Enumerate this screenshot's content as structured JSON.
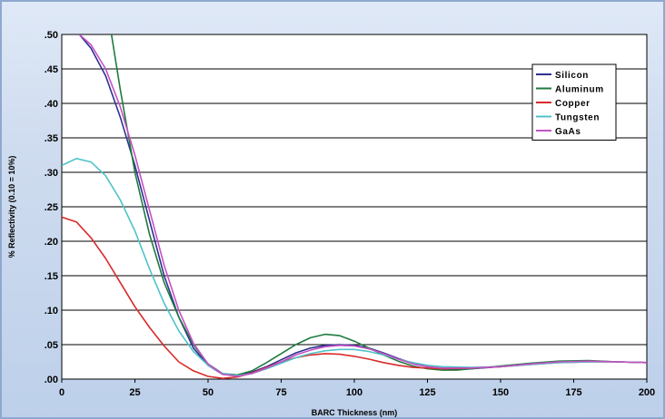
{
  "chart_data": {
    "type": "line",
    "title": "",
    "xlabel": "BARC Thickness (nm)",
    "ylabel": "% Reflectivity (0.10 = 10%)",
    "xlim": [
      0,
      200
    ],
    "ylim": [
      0,
      0.5
    ],
    "x_ticks": [
      0,
      25,
      50,
      75,
      100,
      125,
      150,
      175,
      200
    ],
    "x_tick_labels": [
      "0",
      "25",
      "50",
      "75",
      "100",
      "125",
      "150",
      "175",
      "200"
    ],
    "y_ticks": [
      0,
      0.05,
      0.1,
      0.15,
      0.2,
      0.25,
      0.3,
      0.35,
      0.4,
      0.45,
      0.5
    ],
    "y_tick_labels": [
      ".00",
      ".05",
      ".10",
      ".15",
      ".20",
      ".25",
      ".30",
      ".35",
      ".40",
      ".45",
      ".50"
    ],
    "grid": "horizontal",
    "legend_position": "top-right",
    "series": [
      {
        "name": "Silicon",
        "color": "#2e3192",
        "points": [
          [
            6,
            0.5
          ],
          [
            10,
            0.48
          ],
          [
            15,
            0.44
          ],
          [
            20,
            0.38
          ],
          [
            25,
            0.31
          ],
          [
            30,
            0.23
          ],
          [
            35,
            0.15
          ],
          [
            40,
            0.09
          ],
          [
            45,
            0.045
          ],
          [
            50,
            0.02
          ],
          [
            55,
            0.007
          ],
          [
            60,
            0.005
          ],
          [
            65,
            0.01
          ],
          [
            70,
            0.018
          ],
          [
            75,
            0.028
          ],
          [
            80,
            0.038
          ],
          [
            85,
            0.045
          ],
          [
            90,
            0.049
          ],
          [
            95,
            0.05
          ],
          [
            100,
            0.049
          ],
          [
            105,
            0.045
          ],
          [
            110,
            0.038
          ],
          [
            115,
            0.03
          ],
          [
            120,
            0.023
          ],
          [
            125,
            0.018
          ],
          [
            130,
            0.015
          ],
          [
            135,
            0.014
          ],
          [
            140,
            0.015
          ],
          [
            150,
            0.018
          ],
          [
            160,
            0.022
          ],
          [
            170,
            0.025
          ],
          [
            180,
            0.026
          ],
          [
            190,
            0.025
          ],
          [
            200,
            0.024
          ]
        ]
      },
      {
        "name": "Aluminum",
        "color": "#1f7a3e",
        "points": [
          [
            17,
            0.5
          ],
          [
            20,
            0.42
          ],
          [
            25,
            0.3
          ],
          [
            30,
            0.21
          ],
          [
            35,
            0.14
          ],
          [
            40,
            0.09
          ],
          [
            45,
            0.05
          ],
          [
            50,
            0.022
          ],
          [
            55,
            0.008
          ],
          [
            60,
            0.006
          ],
          [
            65,
            0.012
          ],
          [
            70,
            0.024
          ],
          [
            75,
            0.037
          ],
          [
            80,
            0.05
          ],
          [
            85,
            0.06
          ],
          [
            90,
            0.065
          ],
          [
            95,
            0.063
          ],
          [
            100,
            0.055
          ],
          [
            105,
            0.045
          ],
          [
            110,
            0.035
          ],
          [
            115,
            0.026
          ],
          [
            120,
            0.019
          ],
          [
            125,
            0.015
          ],
          [
            130,
            0.013
          ],
          [
            135,
            0.013
          ],
          [
            140,
            0.015
          ],
          [
            150,
            0.019
          ],
          [
            160,
            0.023
          ],
          [
            170,
            0.026
          ],
          [
            180,
            0.027
          ],
          [
            190,
            0.025
          ],
          [
            200,
            0.024
          ]
        ]
      },
      {
        "name": "Copper",
        "color": "#d92a2a",
        "points": [
          [
            0,
            0.235
          ],
          [
            5,
            0.228
          ],
          [
            10,
            0.205
          ],
          [
            15,
            0.175
          ],
          [
            20,
            0.14
          ],
          [
            25,
            0.105
          ],
          [
            30,
            0.075
          ],
          [
            35,
            0.048
          ],
          [
            40,
            0.025
          ],
          [
            45,
            0.012
          ],
          [
            50,
            0.004
          ],
          [
            55,
            0.001
          ],
          [
            60,
            0.003
          ],
          [
            65,
            0.009
          ],
          [
            70,
            0.017
          ],
          [
            75,
            0.025
          ],
          [
            80,
            0.031
          ],
          [
            85,
            0.035
          ],
          [
            90,
            0.037
          ],
          [
            95,
            0.036
          ],
          [
            100,
            0.033
          ],
          [
            105,
            0.029
          ],
          [
            110,
            0.024
          ],
          [
            115,
            0.02
          ],
          [
            120,
            0.017
          ],
          [
            130,
            0.015
          ],
          [
            140,
            0.016
          ],
          [
            150,
            0.018
          ],
          [
            160,
            0.021
          ],
          [
            170,
            0.024
          ],
          [
            180,
            0.025
          ],
          [
            190,
            0.025
          ],
          [
            200,
            0.024
          ]
        ]
      },
      {
        "name": "Tungsten",
        "color": "#4fc3c8",
        "points": [
          [
            0,
            0.31
          ],
          [
            5,
            0.32
          ],
          [
            10,
            0.315
          ],
          [
            15,
            0.295
          ],
          [
            20,
            0.26
          ],
          [
            25,
            0.215
          ],
          [
            30,
            0.16
          ],
          [
            35,
            0.11
          ],
          [
            40,
            0.07
          ],
          [
            45,
            0.04
          ],
          [
            50,
            0.02
          ],
          [
            55,
            0.008
          ],
          [
            60,
            0.005
          ],
          [
            65,
            0.008
          ],
          [
            70,
            0.015
          ],
          [
            75,
            0.023
          ],
          [
            80,
            0.031
          ],
          [
            85,
            0.037
          ],
          [
            90,
            0.041
          ],
          [
            95,
            0.043
          ],
          [
            100,
            0.043
          ],
          [
            105,
            0.04
          ],
          [
            110,
            0.035
          ],
          [
            115,
            0.029
          ],
          [
            120,
            0.024
          ],
          [
            125,
            0.02
          ],
          [
            130,
            0.018
          ],
          [
            140,
            0.017
          ],
          [
            150,
            0.018
          ],
          [
            160,
            0.021
          ],
          [
            170,
            0.024
          ],
          [
            180,
            0.025
          ],
          [
            190,
            0.025
          ],
          [
            200,
            0.024
          ]
        ]
      },
      {
        "name": "GaAs",
        "color": "#c452c4",
        "points": [
          [
            6,
            0.5
          ],
          [
            10,
            0.485
          ],
          [
            15,
            0.45
          ],
          [
            20,
            0.395
          ],
          [
            25,
            0.325
          ],
          [
            30,
            0.245
          ],
          [
            35,
            0.165
          ],
          [
            40,
            0.1
          ],
          [
            45,
            0.052
          ],
          [
            50,
            0.022
          ],
          [
            55,
            0.007
          ],
          [
            60,
            0.004
          ],
          [
            65,
            0.008
          ],
          [
            70,
            0.016
          ],
          [
            75,
            0.025
          ],
          [
            80,
            0.035
          ],
          [
            85,
            0.042
          ],
          [
            90,
            0.047
          ],
          [
            95,
            0.049
          ],
          [
            100,
            0.048
          ],
          [
            105,
            0.044
          ],
          [
            110,
            0.037
          ],
          [
            115,
            0.029
          ],
          [
            120,
            0.022
          ],
          [
            125,
            0.018
          ],
          [
            130,
            0.016
          ],
          [
            140,
            0.016
          ],
          [
            150,
            0.018
          ],
          [
            160,
            0.022
          ],
          [
            170,
            0.025
          ],
          [
            180,
            0.026
          ],
          [
            190,
            0.025
          ],
          [
            200,
            0.024
          ]
        ]
      }
    ]
  }
}
